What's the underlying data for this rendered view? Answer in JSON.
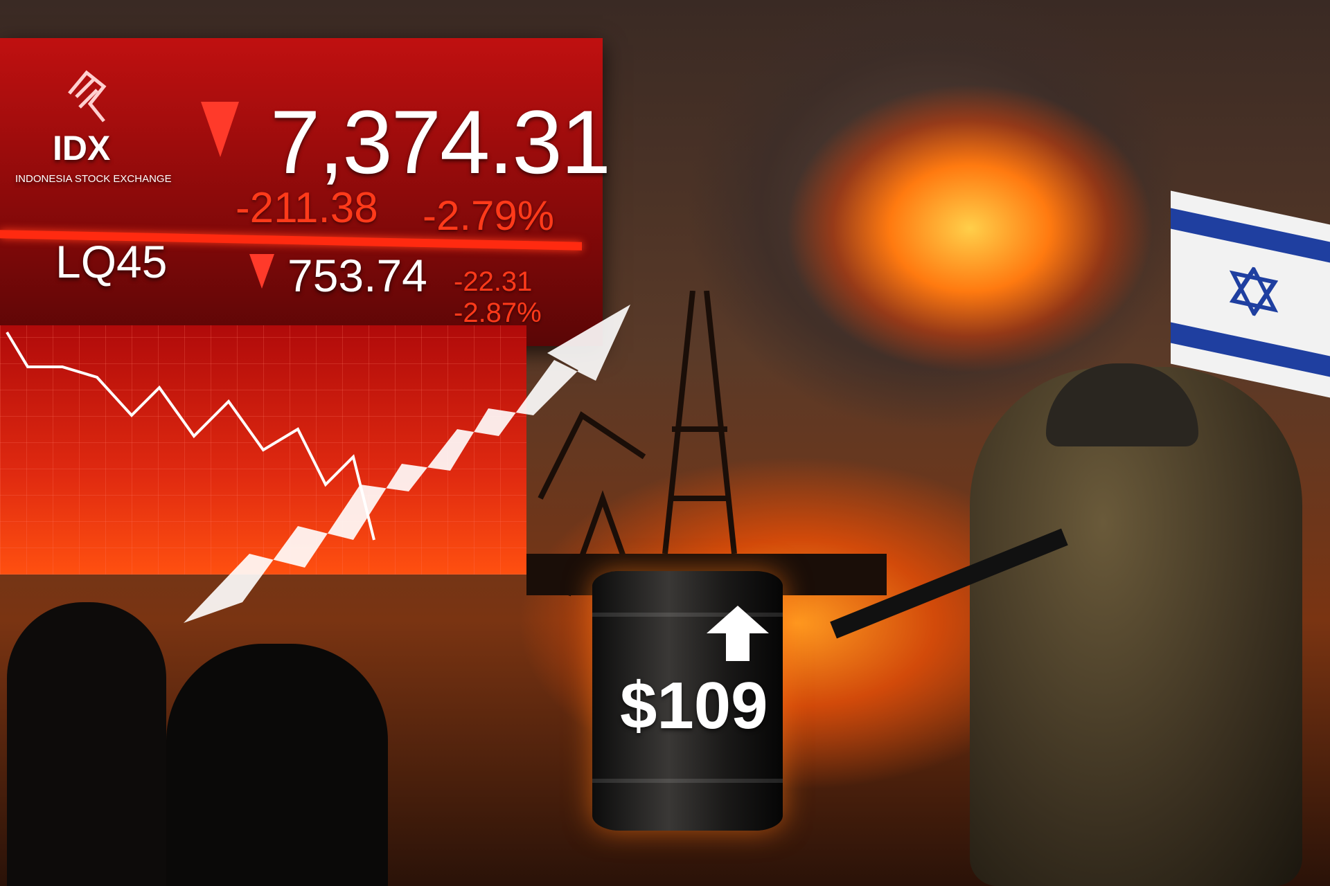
{
  "ticker": {
    "exchange_logo": "IDX",
    "exchange_name": "INDONESIA STOCK EXCHANGE",
    "composite": {
      "value": "7,374.31",
      "change": "-211.38",
      "change_pct": "-2.79%",
      "direction": "down"
    },
    "lq45": {
      "label": "LQ45",
      "value": "753.74",
      "change": "-22.31",
      "change_pct": "-2.87%",
      "direction": "down"
    }
  },
  "oil_barrel": {
    "price": "$109",
    "direction": "up"
  },
  "colors": {
    "panel_red": "#c01010",
    "down_red": "#ff3a1a",
    "flag_blue": "#1f3fa0"
  }
}
